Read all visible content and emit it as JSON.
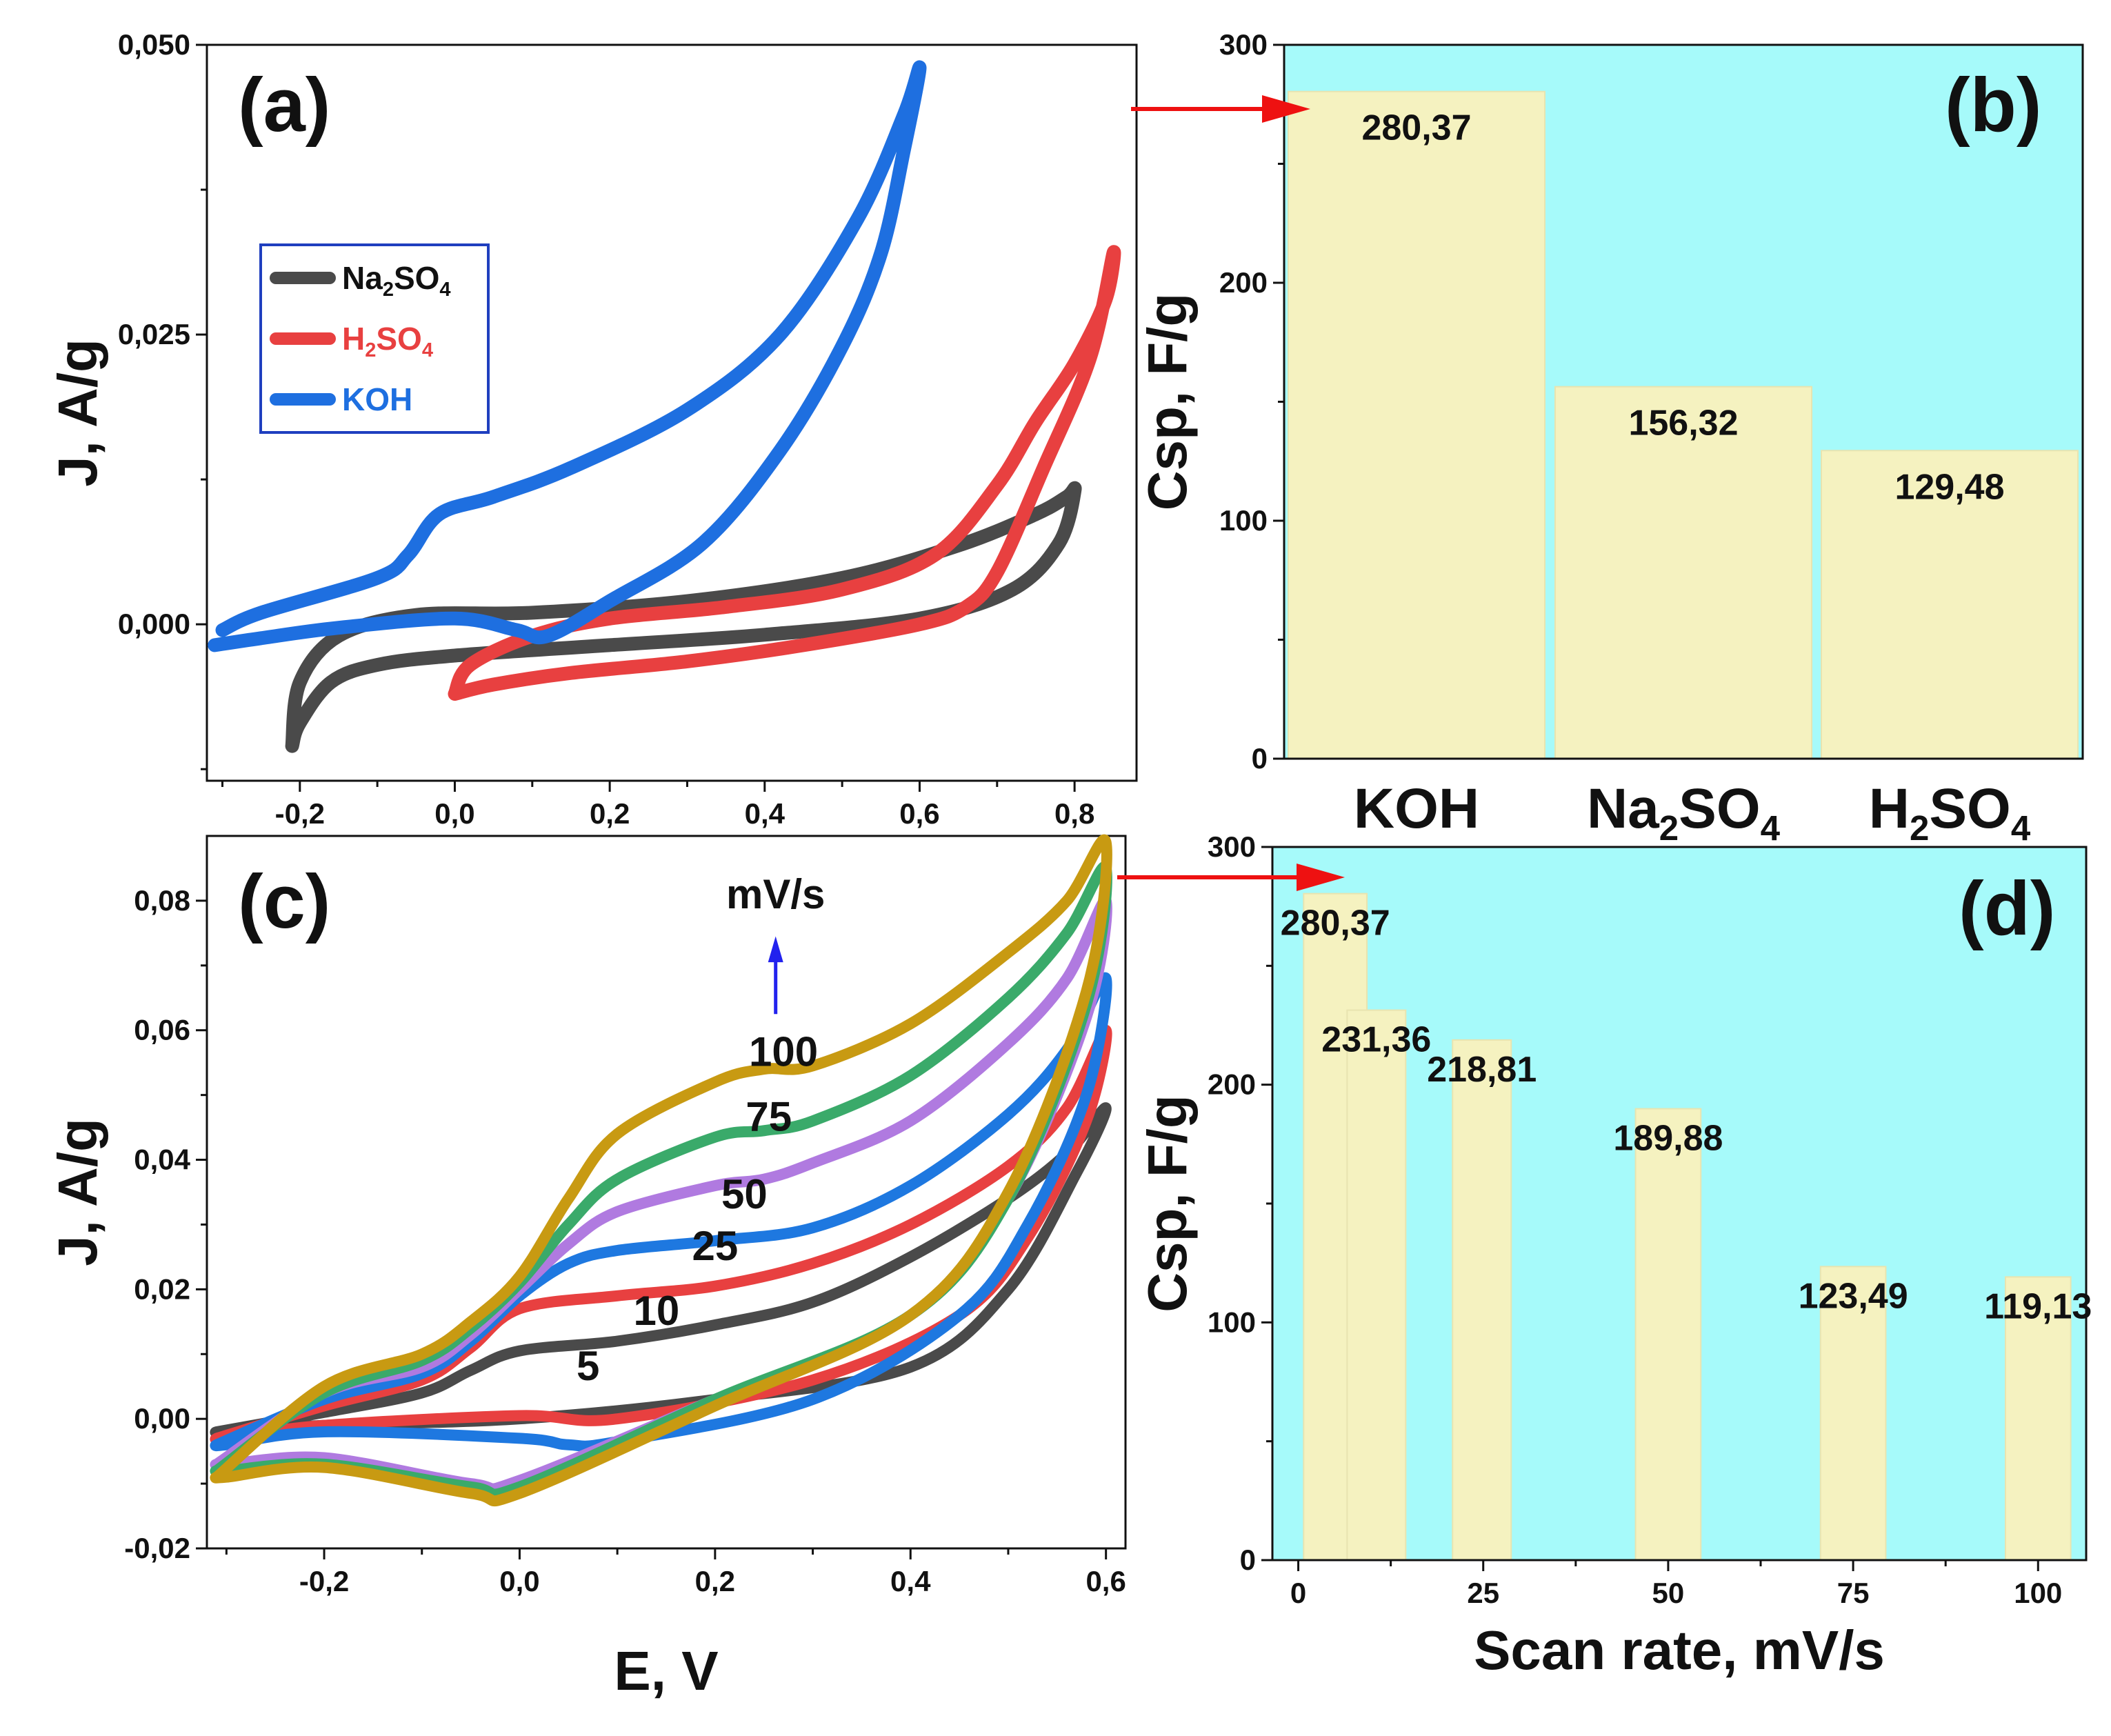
{
  "colors": {
    "Na2SO4": "#4a4a4a",
    "H2SO4": "#e84040",
    "KOH": "#1e6fe0",
    "bar_fill": "#f5f2c0",
    "bar_bg": "#a6fafa",
    "arrow": "#ee1111",
    "rate_5": "#4a4a4a",
    "rate_10": "#e84040",
    "rate_25": "#1e78e0",
    "rate_50": "#b07ae0",
    "rate_75": "#3aaa6a",
    "rate_100": "#c89a12",
    "mvs_label": "#2222ee"
  },
  "chart_data": [
    {
      "panel": "(a)",
      "type": "line",
      "xlabel": "E, V",
      "ylabel": "J, A/g",
      "xlim": [
        -0.32,
        0.88
      ],
      "ylim": [
        -0.0135,
        0.05
      ],
      "xticks": [
        "-0,2",
        "0,0",
        "0,2",
        "0,4",
        "0,6",
        "0,8"
      ],
      "yticks": [
        "0,000",
        "0,025",
        "0,050"
      ],
      "legend": {
        "position": "upper-left",
        "entries": [
          {
            "key": "Na2SO4",
            "base": "Na",
            "sub1": "2",
            "mid": "SO",
            "sub2": "4",
            "color": "#4a4a4a"
          },
          {
            "key": "H2SO4",
            "base": "H",
            "sub1": "2",
            "mid": "SO",
            "sub2": "4",
            "color": "#e84040"
          },
          {
            "key": "KOH",
            "base": "KOH",
            "sub1": "",
            "mid": "",
            "sub2": "",
            "color": "#1e6fe0"
          }
        ]
      },
      "series": [
        {
          "name": "Na2SO4",
          "color": "#4a4a4a",
          "x": [
            -0.21,
            -0.2,
            -0.16,
            -0.1,
            0.0,
            0.2,
            0.4,
            0.6,
            0.72,
            0.78,
            0.8,
            0.79,
            0.75,
            0.65,
            0.5,
            0.3,
            0.1,
            -0.05,
            -0.15,
            -0.2,
            -0.21
          ],
          "y": [
            -0.0105,
            -0.0085,
            -0.005,
            -0.0035,
            -0.0027,
            -0.0018,
            -0.0009,
            0.0005,
            0.003,
            0.007,
            0.0115,
            0.011,
            0.0095,
            0.0068,
            0.004,
            0.002,
            0.001,
            0.0008,
            -0.001,
            -0.005,
            -0.0105
          ]
        },
        {
          "name": "H2SO4",
          "color": "#e84040",
          "x": [
            0.0,
            0.05,
            0.15,
            0.3,
            0.45,
            0.6,
            0.66,
            0.7,
            0.76,
            0.82,
            0.85,
            0.84,
            0.8,
            0.75,
            0.7,
            0.62,
            0.5,
            0.35,
            0.2,
            0.1,
            0.02,
            0.0
          ],
          "y": [
            -0.006,
            -0.0052,
            -0.0042,
            -0.0032,
            -0.0018,
            0.0,
            0.0015,
            0.0045,
            0.0135,
            0.023,
            0.032,
            0.028,
            0.0225,
            0.0175,
            0.012,
            0.006,
            0.003,
            0.0015,
            0.0005,
            -0.001,
            -0.0035,
            -0.006
          ]
        },
        {
          "name": "KOH",
          "color": "#1e6fe0",
          "x": [
            -0.3,
            -0.25,
            -0.1,
            -0.06,
            -0.02,
            0.05,
            0.15,
            0.3,
            0.42,
            0.52,
            0.58,
            0.6,
            0.58,
            0.55,
            0.5,
            0.42,
            0.32,
            0.2,
            0.12,
            0.08,
            0.0,
            -0.15,
            -0.25,
            -0.31
          ],
          "y": [
            -0.0005,
            0.001,
            0.004,
            0.006,
            0.0095,
            0.011,
            0.0135,
            0.0185,
            0.025,
            0.035,
            0.044,
            0.048,
            0.041,
            0.032,
            0.024,
            0.015,
            0.007,
            0.002,
            -0.001,
            -0.0005,
            0.0005,
            -0.0003,
            -0.0012,
            -0.0018
          ]
        }
      ]
    },
    {
      "panel": "(b)",
      "type": "bar",
      "xlabel": "",
      "ylabel": "Csp, F/g",
      "ylim": [
        0,
        300
      ],
      "yticks": [
        "0",
        "100",
        "200",
        "300"
      ],
      "categories": [
        {
          "base": "KOH",
          "sub1": "",
          "mid": "",
          "sub2": ""
        },
        {
          "base": "Na",
          "sub1": "2",
          "mid": "SO",
          "sub2": "4"
        },
        {
          "base": "H",
          "sub1": "2",
          "mid": "SO",
          "sub2": "4"
        }
      ],
      "values": [
        280.37,
        156.32,
        129.48
      ],
      "value_labels": [
        "280,37",
        "156,32",
        "129,48"
      ]
    },
    {
      "panel": "(c)",
      "type": "line",
      "xlabel": "E, V",
      "ylabel": "J, A/g",
      "xlim": [
        -0.32,
        0.62
      ],
      "ylim": [
        -0.02,
        0.09
      ],
      "xticks": [
        "-0,2",
        "0,0",
        "0,2",
        "0,4",
        "0,6"
      ],
      "yticks": [
        "-0,02",
        "0,00",
        "0,02",
        "0,04",
        "0,06",
        "0,08"
      ],
      "unit_annotation": "mV/s",
      "series": [
        {
          "name": "5",
          "color": "#4a4a4a",
          "x": [
            -0.31,
            -0.2,
            -0.1,
            -0.05,
            0.0,
            0.1,
            0.2,
            0.3,
            0.4,
            0.5,
            0.56,
            0.6,
            0.57,
            0.5,
            0.4,
            0.2,
            0.0,
            -0.2,
            -0.3,
            -0.31
          ],
          "y": [
            -0.002,
            0.001,
            0.004,
            0.0075,
            0.0105,
            0.012,
            0.0145,
            0.018,
            0.025,
            0.034,
            0.041,
            0.048,
            0.038,
            0.02,
            0.008,
            0.003,
            0.0,
            -0.001,
            -0.002,
            -0.002
          ]
        },
        {
          "name": "10",
          "color": "#e84040",
          "x": [
            -0.31,
            -0.2,
            -0.1,
            -0.05,
            0.0,
            0.1,
            0.2,
            0.3,
            0.4,
            0.5,
            0.56,
            0.6,
            0.58,
            0.52,
            0.45,
            0.3,
            0.1,
            0.0,
            -0.2,
            -0.3,
            -0.31
          ],
          "y": [
            -0.003,
            0.002,
            0.006,
            0.011,
            0.017,
            0.019,
            0.0205,
            0.024,
            0.03,
            0.039,
            0.048,
            0.06,
            0.046,
            0.028,
            0.016,
            0.006,
            0.0,
            0.0005,
            -0.001,
            -0.003,
            -0.003
          ]
        },
        {
          "name": "25",
          "color": "#1e78e0",
          "x": [
            -0.31,
            -0.2,
            -0.1,
            -0.05,
            0.0,
            0.05,
            0.1,
            0.2,
            0.3,
            0.4,
            0.5,
            0.56,
            0.6,
            0.58,
            0.52,
            0.45,
            0.3,
            0.1,
            0.05,
            0.0,
            -0.2,
            -0.3,
            -0.31
          ],
          "y": [
            -0.004,
            0.003,
            0.007,
            0.012,
            0.019,
            0.024,
            0.026,
            0.0275,
            0.0295,
            0.036,
            0.047,
            0.057,
            0.068,
            0.05,
            0.03,
            0.016,
            0.003,
            -0.0035,
            -0.004,
            -0.003,
            -0.002,
            -0.004,
            -0.004
          ]
        },
        {
          "name": "50",
          "color": "#b07ae0",
          "x": [
            -0.31,
            -0.2,
            -0.1,
            -0.05,
            0.0,
            0.05,
            0.1,
            0.2,
            0.25,
            0.3,
            0.4,
            0.5,
            0.56,
            0.6,
            0.58,
            0.5,
            0.4,
            0.2,
            0.0,
            -0.05,
            -0.2,
            -0.3,
            -0.31
          ],
          "y": [
            -0.007,
            0.004,
            0.008,
            0.013,
            0.02,
            0.027,
            0.032,
            0.036,
            0.037,
            0.0395,
            0.046,
            0.058,
            0.068,
            0.08,
            0.062,
            0.034,
            0.016,
            0.003,
            -0.0095,
            -0.01,
            -0.006,
            -0.007,
            -0.007
          ]
        },
        {
          "name": "75",
          "color": "#3aaa6a",
          "x": [
            -0.31,
            -0.2,
            -0.1,
            -0.05,
            0.0,
            0.05,
            0.1,
            0.2,
            0.25,
            0.3,
            0.4,
            0.5,
            0.56,
            0.6,
            0.58,
            0.5,
            0.4,
            0.2,
            0.0,
            -0.05,
            -0.2,
            -0.3,
            -0.31
          ],
          "y": [
            -0.008,
            0.004,
            0.009,
            0.014,
            0.021,
            0.03,
            0.037,
            0.0435,
            0.0445,
            0.046,
            0.053,
            0.065,
            0.075,
            0.085,
            0.064,
            0.034,
            0.016,
            0.003,
            -0.0105,
            -0.0105,
            -0.007,
            -0.008,
            -0.008
          ]
        },
        {
          "name": "100",
          "color": "#c89a12",
          "x": [
            -0.31,
            -0.2,
            -0.1,
            -0.05,
            0.0,
            0.05,
            0.1,
            0.2,
            0.25,
            0.3,
            0.4,
            0.5,
            0.56,
            0.6,
            0.58,
            0.5,
            0.4,
            0.2,
            0.0,
            -0.05,
            -0.2,
            -0.3,
            -0.31
          ],
          "y": [
            -0.009,
            0.005,
            0.01,
            0.015,
            0.022,
            0.034,
            0.044,
            0.052,
            0.054,
            0.0545,
            0.061,
            0.072,
            0.08,
            0.089,
            0.066,
            0.035,
            0.016,
            0.002,
            -0.0115,
            -0.0115,
            -0.0075,
            -0.009,
            -0.009
          ]
        }
      ],
      "curve_labels": [
        {
          "text": "5",
          "x": 0.07,
          "y": 0.006
        },
        {
          "text": "10",
          "x": 0.14,
          "y": 0.0145
        },
        {
          "text": "25",
          "x": 0.2,
          "y": 0.0245
        },
        {
          "text": "50",
          "x": 0.23,
          "y": 0.0325
        },
        {
          "text": "75",
          "x": 0.255,
          "y": 0.0445
        },
        {
          "text": "100",
          "x": 0.27,
          "y": 0.0545
        }
      ]
    },
    {
      "panel": "(d)",
      "type": "bar",
      "xlabel": "Scan rate, mV/s",
      "ylabel": "Csp, F/g",
      "xlim": [
        -3.5,
        106.5
      ],
      "ylim": [
        0,
        300
      ],
      "xticks": [
        "0",
        "25",
        "50",
        "75",
        "100"
      ],
      "yticks": [
        "0",
        "100",
        "200",
        "300"
      ],
      "x": [
        5,
        10,
        25,
        50,
        75,
        100
      ],
      "values": [
        280.37,
        231.36,
        218.81,
        189.88,
        123.49,
        119.13
      ],
      "value_labels": [
        "280,37",
        "231,36",
        "218,81",
        "189,88",
        "123,49",
        "119,13"
      ]
    }
  ]
}
